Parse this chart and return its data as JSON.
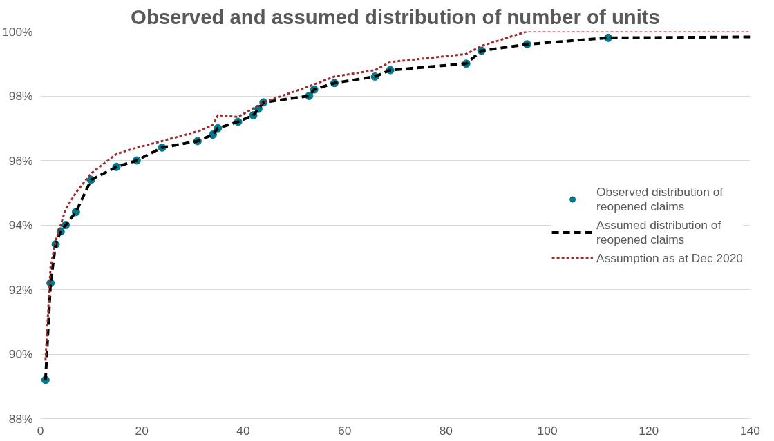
{
  "chart_data": {
    "type": "line",
    "title": "Observed and assumed distribution of number of units",
    "xlim": [
      0,
      140
    ],
    "xticks": [
      0,
      20,
      40,
      60,
      80,
      100,
      120,
      140
    ],
    "ylim": [
      88,
      100
    ],
    "yticks": [
      {
        "value": 88,
        "label": "88%"
      },
      {
        "value": 90,
        "label": "90%"
      },
      {
        "value": 92,
        "label": "92%"
      },
      {
        "value": 94,
        "label": "94%"
      },
      {
        "value": 96,
        "label": "96%"
      },
      {
        "value": 98,
        "label": "98%"
      },
      {
        "value": 100,
        "label": "100%"
      }
    ],
    "grid": "y",
    "legend": "right",
    "series": [
      {
        "name": "Observed distribution of\nreopened claims",
        "type": "scatter",
        "marker": "circle",
        "color": "#00788a",
        "x": [
          1,
          2,
          3,
          4,
          5,
          7,
          10,
          15,
          19,
          24,
          31,
          34,
          35,
          39,
          42,
          43,
          44,
          53,
          54,
          58,
          66,
          69,
          84,
          87,
          96,
          112
        ],
        "values": [
          89.2,
          92.2,
          93.4,
          93.8,
          94.0,
          94.4,
          95.4,
          95.8,
          96.0,
          96.4,
          96.6,
          96.8,
          97.0,
          97.2,
          97.4,
          97.6,
          97.8,
          98.0,
          98.2,
          98.4,
          98.6,
          98.8,
          99.0,
          99.4,
          99.6,
          99.8
        ]
      },
      {
        "name": "Assumed distribution of\nreopened claims",
        "line_style": "dashed",
        "color": "#000000",
        "x": [
          1,
          2,
          3,
          4,
          5,
          7,
          10,
          15,
          19,
          24,
          31,
          34,
          35,
          39,
          42,
          43,
          44,
          53,
          54,
          58,
          66,
          69,
          84,
          87,
          96,
          112,
          140
        ],
        "values": [
          89.2,
          92.2,
          93.4,
          93.8,
          94.0,
          94.4,
          95.4,
          95.8,
          96.0,
          96.4,
          96.6,
          96.8,
          97.0,
          97.2,
          97.4,
          97.6,
          97.8,
          98.0,
          98.2,
          98.4,
          98.6,
          98.8,
          99.0,
          99.4,
          99.6,
          99.8,
          99.83
        ]
      },
      {
        "name": "Assumption as at Dec 2020",
        "line_style": "dotted",
        "color": "#9b2d30",
        "x": [
          1,
          2,
          3,
          4,
          5,
          7,
          10,
          15,
          19,
          24,
          31,
          34,
          35,
          39,
          43,
          44,
          53,
          58,
          66,
          69,
          84,
          87,
          96,
          140
        ],
        "values": [
          89.8,
          92.7,
          93.5,
          94.0,
          94.5,
          95.0,
          95.6,
          96.2,
          96.4,
          96.6,
          96.9,
          97.1,
          97.4,
          97.35,
          97.7,
          97.8,
          98.3,
          98.6,
          98.8,
          99.05,
          99.3,
          99.55,
          100.0,
          100.0
        ]
      }
    ]
  }
}
